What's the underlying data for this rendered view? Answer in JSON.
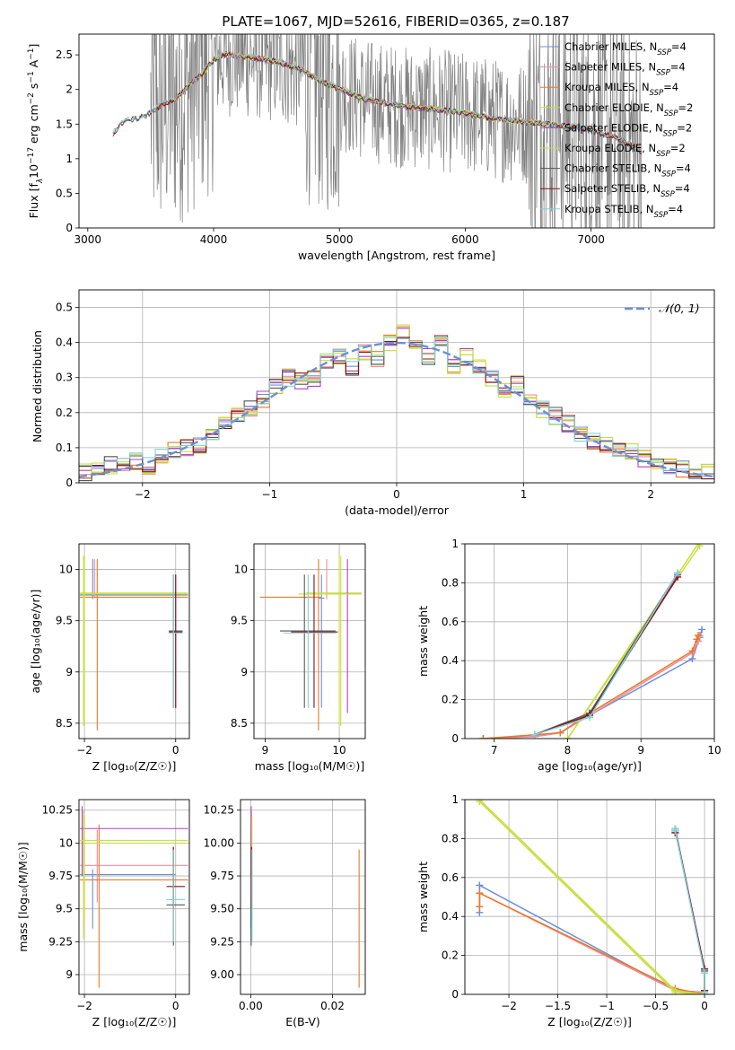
{
  "figure_title": "PLATE=1067, MJD=52616, FIBERID=0365, z=0.187",
  "colors": {
    "Chabrier MILES": "#6a8fd8",
    "Salpeter MILES": "#f28b9a",
    "Kroupa MILES": "#e87a2a",
    "Chabrier ELODIE": "#c9dc3c",
    "Salpeter ELODIE": "#b040c8",
    "Kroupa ELODIE": "#c8e040",
    "Chabrier STELIB": "#555555",
    "Salpeter STELIB": "#8b1010",
    "Kroupa STELIB": "#7fd4d8",
    "data": "#7f7f7f",
    "gaussian": "#6a8fd8"
  },
  "chart_data": [
    {
      "id": "spectrum",
      "type": "line",
      "xlabel": "wavelength [Angstrom, rest frame]",
      "ylabel_parts": [
        "Flux [f",
        "λ",
        "10",
        "−17",
        " erg cm",
        "−2",
        " s",
        "−1",
        " A",
        "−1",
        "]"
      ],
      "xlim": [
        2930,
        7980
      ],
      "ylim": [
        0.0,
        2.8
      ],
      "xticks": [
        3000,
        4000,
        5000,
        6000,
        7000
      ],
      "yticks": [
        0.0,
        0.5,
        1.0,
        1.5,
        2.0,
        2.5
      ],
      "grid": false,
      "legend": {
        "placement": "right",
        "entries": [
          {
            "name": "Chabrier MILES",
            "nssp": "4"
          },
          {
            "name": "Salpeter MILES",
            "nssp": "4"
          },
          {
            "name": "Kroupa MILES",
            "nssp": "4"
          },
          {
            "name": "Chabrier ELODIE",
            "nssp": "2"
          },
          {
            "name": "Salpeter ELODIE",
            "nssp": "2"
          },
          {
            "name": "Kroupa ELODIE",
            "nssp": "2"
          },
          {
            "name": "Chabrier STELIB",
            "nssp": "4"
          },
          {
            "name": "Salpeter STELIB",
            "nssp": "4"
          },
          {
            "name": "Kroupa STELIB",
            "nssp": "4"
          }
        ],
        "label_template": "{name}, N{sub}={n}",
        "sub": "SSP"
      },
      "continuum": {
        "x": [
          3200,
          3300,
          3450,
          3600,
          3700,
          3800,
          3900,
          4000,
          4100,
          4300,
          4500,
          4700,
          4860,
          5000,
          5200,
          5500,
          5800,
          6000,
          6300,
          6600,
          6900,
          7200,
          7400
        ],
        "y": [
          1.35,
          1.55,
          1.6,
          1.78,
          1.85,
          2.05,
          2.2,
          2.42,
          2.5,
          2.45,
          2.4,
          2.28,
          2.1,
          2.0,
          1.85,
          1.75,
          1.7,
          1.65,
          1.55,
          1.5,
          1.45,
          1.3,
          1.1
        ]
      },
      "data_range": [
        3500,
        7400
      ],
      "model_ranges": {
        "MILES": [
          3540,
          7400
        ],
        "ELODIE": [
          3700,
          6800
        ],
        "STELIB": [
          3200,
          7400
        ]
      }
    },
    {
      "id": "residuals",
      "type": "line",
      "xlabel": "(data-model)/error",
      "ylabel": "Normed distribution",
      "xlim": [
        -2.5,
        2.5
      ],
      "ylim": [
        0.0,
        0.55
      ],
      "xticks": [
        -2,
        -1,
        0,
        1,
        2
      ],
      "yticks": [
        0.0,
        0.1,
        0.2,
        0.3,
        0.4,
        0.5
      ],
      "grid": true,
      "legend": {
        "placement": "top-right",
        "entries": [
          "𝒩(0, 1)"
        ]
      },
      "bin_width": 0.1,
      "hist_x": [
        -2.45,
        -2.35,
        -2.25,
        -2.15,
        -2.05,
        -1.95,
        -1.85,
        -1.75,
        -1.65,
        -1.55,
        -1.45,
        -1.35,
        -1.25,
        -1.15,
        -1.05,
        -0.95,
        -0.85,
        -0.75,
        -0.65,
        -0.55,
        -0.45,
        -0.35,
        -0.25,
        -0.15,
        -0.05,
        0.05,
        0.15,
        0.25,
        0.35,
        0.45,
        0.55,
        0.65,
        0.75,
        0.85,
        0.95,
        1.05,
        1.15,
        1.25,
        1.35,
        1.45,
        1.55,
        1.65,
        1.75,
        1.85,
        1.95,
        2.05,
        2.15,
        2.25,
        2.35,
        2.45
      ],
      "hist_y": [
        0.03,
        0.04,
        0.05,
        0.05,
        0.06,
        0.05,
        0.08,
        0.09,
        0.1,
        0.11,
        0.14,
        0.17,
        0.19,
        0.21,
        0.24,
        0.27,
        0.3,
        0.29,
        0.3,
        0.35,
        0.36,
        0.33,
        0.37,
        0.35,
        0.4,
        0.43,
        0.38,
        0.36,
        0.4,
        0.33,
        0.36,
        0.33,
        0.3,
        0.26,
        0.28,
        0.23,
        0.21,
        0.19,
        0.17,
        0.14,
        0.12,
        0.11,
        0.1,
        0.09,
        0.07,
        0.06,
        0.05,
        0.04,
        0.03,
        0.03
      ]
    },
    {
      "id": "age_vs_z",
      "type": "scatter",
      "xlabel": "Z [log₁₀(Z/Z☉)]",
      "ylabel": "age  [log₁₀(age/yr)]",
      "xlim": [
        -2.12,
        0.3
      ],
      "ylim": [
        8.35,
        10.25
      ],
      "xticks": [
        -2,
        0
      ],
      "yticks": [
        8.5,
        9.0,
        9.5,
        10.0
      ],
      "grid": true,
      "points": [
        {
          "s": "Chabrier MILES",
          "x": -1.82,
          "y": 9.75,
          "xl": -2.1,
          "xh": 0.27,
          "yl": 9.71,
          "yh": 10.1
        },
        {
          "s": "Salpeter MILES",
          "x": -1.78,
          "y": 9.76,
          "xl": -2.1,
          "xh": 0.25,
          "yl": 9.72,
          "yh": 10.1
        },
        {
          "s": "Kroupa MILES",
          "x": -1.72,
          "y": 9.73,
          "xl": -2.1,
          "xh": 0.27,
          "yl": 8.43,
          "yh": 10.1
        },
        {
          "s": "Chabrier ELODIE",
          "x": -2.0,
          "y": 9.77,
          "xl": -2.1,
          "xh": 0.27,
          "yl": 8.48,
          "yh": 10.15
        },
        {
          "s": "Kroupa ELODIE",
          "x": -2.02,
          "y": 9.76,
          "xl": -2.1,
          "xh": 0.27,
          "yl": 8.47,
          "yh": 10.13
        },
        {
          "s": "Salpeter ELODIE",
          "x": 0.0,
          "y": 9.4,
          "xl": -0.15,
          "xh": 0.15,
          "yl": 8.65,
          "yh": 9.95
        },
        {
          "s": "Chabrier STELIB",
          "x": -0.05,
          "y": 9.4,
          "xl": -0.15,
          "xh": 0.15,
          "yl": 8.65,
          "yh": 9.95
        },
        {
          "s": "Salpeter STELIB",
          "x": 0.0,
          "y": 9.39,
          "xl": -0.15,
          "xh": 0.15,
          "yl": 8.65,
          "yh": 9.95
        },
        {
          "s": "Kroupa STELIB",
          "x": -0.05,
          "y": 9.38,
          "xl": -0.15,
          "xh": 0.15,
          "yl": 8.65,
          "yh": 9.95
        }
      ]
    },
    {
      "id": "age_vs_mass",
      "type": "scatter",
      "xlabel": "mass [log₁₀(M/M☉)]",
      "ylabel": "",
      "xlim": [
        8.85,
        10.35
      ],
      "ylim": [
        8.35,
        10.25
      ],
      "xticks": [
        9,
        10
      ],
      "yticks": [
        8.5,
        9.0,
        9.5,
        10.0
      ],
      "grid": true,
      "points": [
        {
          "s": "Chabrier MILES",
          "x": 9.76,
          "y": 9.72,
          "xl": 9.72,
          "xh": 9.8,
          "yl": 8.65,
          "yh": 9.95
        },
        {
          "s": "Salpeter MILES",
          "x": 9.83,
          "y": 9.76,
          "xl": 9.8,
          "xh": 9.86,
          "yl": 9.71,
          "yh": 10.1
        },
        {
          "s": "Kroupa MILES",
          "x": 9.72,
          "y": 9.73,
          "xl": 8.93,
          "xh": 9.75,
          "yl": 8.43,
          "yh": 10.1
        },
        {
          "s": "Chabrier ELODIE",
          "x": 10.0,
          "y": 9.77,
          "xl": 9.55,
          "xh": 10.3,
          "yl": 8.48,
          "yh": 10.15
        },
        {
          "s": "Salpeter ELODIE",
          "x": 10.11,
          "y": 9.76,
          "xl": 9.85,
          "xh": 10.28,
          "yl": 8.6,
          "yh": 10.1
        },
        {
          "s": "Kroupa ELODIE",
          "x": 10.02,
          "y": 9.76,
          "xl": 9.45,
          "xh": 10.3,
          "yl": 8.47,
          "yh": 10.13
        },
        {
          "s": "Chabrier STELIB",
          "x": 9.53,
          "y": 9.4,
          "xl": 9.2,
          "xh": 9.95,
          "yl": 8.65,
          "yh": 9.95
        },
        {
          "s": "Salpeter STELIB",
          "x": 9.66,
          "y": 9.39,
          "xl": 9.35,
          "xh": 9.98,
          "yl": 8.65,
          "yh": 9.95
        },
        {
          "s": "Kroupa STELIB",
          "x": 9.58,
          "y": 9.38,
          "xl": 9.25,
          "xh": 9.95,
          "yl": 8.65,
          "yh": 9.95
        }
      ]
    },
    {
      "id": "mass_weight_vs_age",
      "type": "line",
      "xlabel": "age  [log₁₀(age/yr)]",
      "ylabel": "mass weight",
      "xlim": [
        6.6,
        10.0
      ],
      "ylim": [
        0.0,
        1.0
      ],
      "xticks": [
        7,
        8,
        9,
        10
      ],
      "yticks": [
        0.0,
        0.2,
        0.4,
        0.6,
        0.8,
        1.0
      ],
      "grid": true,
      "series": [
        {
          "s": "Chabrier MILES",
          "x": [
            6.85,
            7.55,
            7.9,
            8.3,
            9.7,
            9.8,
            9.83
          ],
          "y": [
            0.0,
            0.01,
            0.03,
            0.12,
            0.41,
            0.52,
            0.56
          ]
        },
        {
          "s": "Salpeter MILES",
          "x": [
            6.85,
            7.55,
            7.9,
            8.3,
            9.7,
            9.78,
            9.8
          ],
          "y": [
            0.0,
            0.01,
            0.03,
            0.12,
            0.44,
            0.5,
            0.53
          ]
        },
        {
          "s": "Kroupa MILES",
          "x": [
            6.85,
            7.55,
            7.9,
            8.3,
            9.7,
            9.76,
            9.78
          ],
          "y": [
            0.0,
            0.02,
            0.03,
            0.13,
            0.45,
            0.51,
            0.53
          ]
        },
        {
          "s": "Chabrier ELODIE",
          "x": [
            8.0,
            9.78
          ],
          "y": [
            0.0,
            1.0
          ]
        },
        {
          "s": "Kroupa ELODIE",
          "x": [
            8.0,
            9.8
          ],
          "y": [
            0.0,
            0.99
          ]
        },
        {
          "s": "Salpeter ELODIE",
          "x": [
            7.55,
            8.3,
            9.5
          ],
          "y": [
            0.02,
            0.13,
            0.84
          ]
        },
        {
          "s": "Chabrier STELIB",
          "x": [
            7.55,
            8.3,
            9.5
          ],
          "y": [
            0.02,
            0.13,
            0.85
          ]
        },
        {
          "s": "Salpeter STELIB",
          "x": [
            7.55,
            8.3,
            9.5
          ],
          "y": [
            0.02,
            0.12,
            0.83
          ]
        },
        {
          "s": "Kroupa STELIB",
          "x": [
            7.55,
            8.3,
            9.5
          ],
          "y": [
            0.02,
            0.11,
            0.85
          ]
        }
      ]
    },
    {
      "id": "mass_vs_z",
      "type": "scatter",
      "xlabel": "Z [log₁₀(Z/Z☉)]",
      "ylabel": "mass [log₁₀(M/M☉)]",
      "xlim": [
        -2.12,
        0.3
      ],
      "ylim": [
        8.85,
        10.33
      ],
      "xticks": [
        -2,
        0
      ],
      "yticks": [
        9.0,
        9.25,
        9.5,
        9.75,
        10.0,
        10.25
      ],
      "grid": true,
      "points": [
        {
          "s": "Chabrier MILES",
          "x": -1.82,
          "y": 9.76,
          "xl": -2.1,
          "xh": 0.0,
          "yl": 9.35,
          "yh": 9.8
        },
        {
          "s": "Salpeter MILES",
          "x": -1.72,
          "y": 9.83,
          "xl": -2.1,
          "xh": 0.27,
          "yl": 9.55,
          "yh": 10.1
        },
        {
          "s": "Kroupa MILES",
          "x": -1.68,
          "y": 9.72,
          "xl": -2.1,
          "xh": 0.27,
          "yl": 8.9,
          "yh": 10.14
        },
        {
          "s": "Chabrier ELODIE",
          "x": -2.02,
          "y": 10.0,
          "xl": -2.1,
          "xh": 0.27,
          "yl": 9.27,
          "yh": 10.25
        },
        {
          "s": "Salpeter ELODIE",
          "x": -2.05,
          "y": 10.11,
          "xl": -2.1,
          "xh": 0.27,
          "yl": 9.75,
          "yh": 10.28
        },
        {
          "s": "Kroupa ELODIE",
          "x": -2.0,
          "y": 10.02,
          "xl": -2.1,
          "xh": 0.27,
          "yl": 9.42,
          "yh": 10.2
        },
        {
          "s": "Chabrier STELIB",
          "x": -0.05,
          "y": 9.53,
          "xl": -0.2,
          "xh": 0.2,
          "yl": 9.22,
          "yh": 9.97
        },
        {
          "s": "Salpeter STELIB",
          "x": -0.05,
          "y": 9.67,
          "xl": -0.2,
          "xh": 0.2,
          "yl": 9.5,
          "yh": 9.97
        },
        {
          "s": "Kroupa STELIB",
          "x": -0.05,
          "y": 9.57,
          "xl": -0.2,
          "xh": 0.2,
          "yl": 9.25,
          "yh": 9.95
        }
      ]
    },
    {
      "id": "mass_vs_ebv",
      "type": "scatter",
      "xlabel": "E(B-V)",
      "ylabel": "",
      "xlim": [
        -0.0025,
        0.028
      ],
      "ylim": [
        8.85,
        10.33
      ],
      "xticks": [
        0.0,
        0.02
      ],
      "xtick_labels": [
        "0.00",
        "0.02"
      ],
      "yticks": [
        9.0,
        9.25,
        9.5,
        9.75,
        10.0,
        10.25
      ],
      "ytick_labels": [
        "9.00",
        "9.25",
        "9.50",
        "9.75",
        "10.00",
        "10.25"
      ],
      "grid": true,
      "points": [
        {
          "s": "Chabrier MILES",
          "x": 0.0,
          "y": 9.76,
          "yl": 9.35,
          "yh": 9.8
        },
        {
          "s": "Salpeter MILES",
          "x": 0.0,
          "y": 9.83,
          "yl": 9.55,
          "yh": 10.1
        },
        {
          "s": "Kroupa MILES",
          "x": 0.0265,
          "y": 9.72,
          "yl": 8.9,
          "yh": 9.95
        },
        {
          "s": "Chabrier ELODIE",
          "x": 0.0002,
          "y": 10.0,
          "yl": 9.27,
          "yh": 10.25
        },
        {
          "s": "Salpeter ELODIE",
          "x": 0.0001,
          "y": 10.11,
          "yl": 9.75,
          "yh": 10.28
        },
        {
          "s": "Kroupa ELODIE",
          "x": 0.0003,
          "y": 10.02,
          "yl": 9.42,
          "yh": 10.2
        },
        {
          "s": "Chabrier STELIB",
          "x": 0.0001,
          "y": 9.53,
          "yl": 9.22,
          "yh": 9.97
        },
        {
          "s": "Salpeter STELIB",
          "x": 0.0002,
          "y": 9.67,
          "yl": 9.5,
          "yh": 9.97
        },
        {
          "s": "Kroupa STELIB",
          "x": 0.0003,
          "y": 9.57,
          "yl": 9.25,
          "yh": 9.95
        }
      ]
    },
    {
      "id": "mass_weight_vs_z",
      "type": "line",
      "xlabel": "Z [log₁₀(Z/Z☉)]",
      "ylabel": "mass weight",
      "xlim": [
        -2.45,
        0.1
      ],
      "ylim": [
        0.0,
        1.0
      ],
      "xticks": [
        -2.0,
        -1.5,
        -1.0,
        -0.5,
        0.0
      ],
      "yticks": [
        0.0,
        0.2,
        0.4,
        0.6,
        0.8,
        1.0
      ],
      "grid": true,
      "series": [
        {
          "s": "Chabrier MILES",
          "x": [
            -2.3,
            -2.3,
            -0.3,
            0.0
          ],
          "y": [
            0.42,
            0.56,
            0.02,
            0.01
          ]
        },
        {
          "s": "Salpeter MILES",
          "x": [
            -2.3,
            -2.3,
            -0.3,
            0.0
          ],
          "y": [
            0.45,
            0.52,
            0.02,
            0.01
          ]
        },
        {
          "s": "Kroupa MILES",
          "x": [
            -2.3,
            -2.3,
            -0.3,
            0.0
          ],
          "y": [
            0.45,
            0.52,
            0.03,
            0.0
          ]
        },
        {
          "s": "Chabrier ELODIE",
          "x": [
            -2.3,
            -0.3,
            0.0
          ],
          "y": [
            1.0,
            0.02,
            0.0
          ]
        },
        {
          "s": "Kroupa ELODIE",
          "x": [
            -2.3,
            -0.3,
            0.0
          ],
          "y": [
            0.99,
            0.01,
            0.0
          ]
        },
        {
          "s": "Salpeter ELODIE",
          "x": [
            -0.3,
            -0.3,
            0.0,
            0.0
          ],
          "y": [
            0.83,
            0.85,
            0.13,
            0.02
          ]
        },
        {
          "s": "Chabrier STELIB",
          "x": [
            -0.3,
            -0.3,
            0.0,
            0.0
          ],
          "y": [
            0.84,
            0.85,
            0.12,
            0.02
          ]
        },
        {
          "s": "Salpeter STELIB",
          "x": [
            -0.3,
            -0.3,
            0.0,
            0.0
          ],
          "y": [
            0.83,
            0.84,
            0.13,
            0.02
          ]
        },
        {
          "s": "Kroupa STELIB",
          "x": [
            -0.3,
            -0.3,
            0.0,
            0.0
          ],
          "y": [
            0.85,
            0.84,
            0.11,
            0.01
          ]
        }
      ]
    }
  ]
}
